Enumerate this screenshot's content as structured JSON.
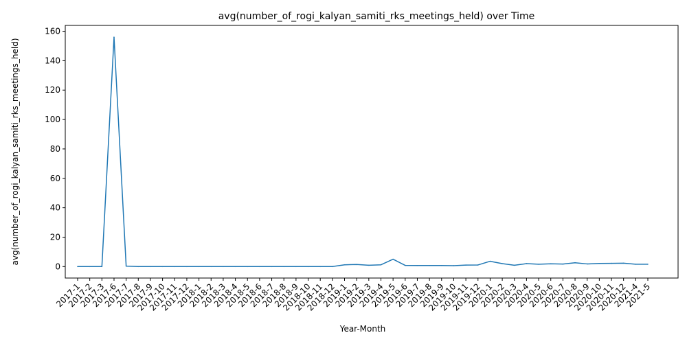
{
  "chart_data": {
    "type": "line",
    "title": "avg(number_of_rogi_kalyan_samiti_rks_meetings_held) over Time",
    "xlabel": "Year-Month",
    "ylabel": "avg(number_of_rogi_kalyan_samiti_rks_meetings_held)",
    "ylim": [
      -7.8,
      164.0
    ],
    "yticks": [
      0,
      20,
      40,
      60,
      80,
      100,
      120,
      140,
      160
    ],
    "grid": false,
    "legend": "none",
    "colors": {
      "line": "#1f77b4",
      "axes": "#000000",
      "background": "#ffffff"
    },
    "categories": [
      "2017-1",
      "2017-2",
      "2017-3",
      "2017-6",
      "2017-7",
      "2017-8",
      "2017-9",
      "2017-10",
      "2017-11",
      "2017-12",
      "2018-1",
      "2018-2",
      "2018-3",
      "2018-4",
      "2018-5",
      "2018-6",
      "2018-7",
      "2018-8",
      "2018-9",
      "2018-10",
      "2018-11",
      "2018-12",
      "2019-1",
      "2019-2",
      "2019-3",
      "2019-4",
      "2019-5",
      "2019-6",
      "2019-7",
      "2019-8",
      "2019-9",
      "2019-10",
      "2019-11",
      "2019-12",
      "2020-1",
      "2020-2",
      "2020-3",
      "2020-4",
      "2020-5",
      "2020-6",
      "2020-7",
      "2020-8",
      "2020-9",
      "2020-10",
      "2020-11",
      "2020-12",
      "2021-4",
      "2021-5"
    ],
    "values": [
      0.0,
      0.0,
      0.0,
      156.0,
      0.3,
      0.0,
      0.0,
      0.0,
      0.0,
      0.0,
      0.0,
      0.0,
      0.0,
      0.0,
      0.0,
      0.0,
      0.0,
      0.0,
      0.0,
      0.0,
      0.0,
      0.0,
      1.2,
      1.4,
      0.9,
      1.2,
      5.0,
      0.8,
      0.7,
      0.7,
      0.7,
      0.6,
      1.0,
      1.1,
      3.6,
      2.0,
      0.9,
      2.0,
      1.6,
      1.9,
      1.7,
      2.6,
      1.8,
      2.1,
      2.2,
      2.3,
      1.6,
      1.6
    ]
  }
}
